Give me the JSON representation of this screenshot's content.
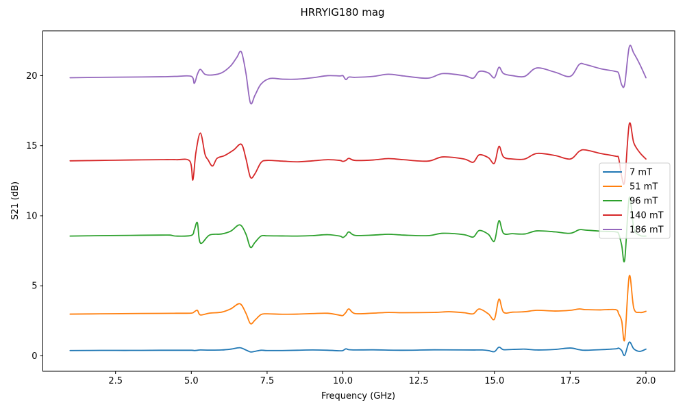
{
  "chart_data": {
    "type": "line",
    "title": "HRRYIG180 mag",
    "xlabel": "Frequency (GHz)",
    "ylabel": "S21 (dB)",
    "xlim": [
      0.1,
      20.95
    ],
    "ylim": [
      -1.1,
      23.2
    ],
    "xticks": [
      2.5,
      5.0,
      7.5,
      10.0,
      12.5,
      15.0,
      17.5,
      20.0
    ],
    "xtick_labels": [
      "2.5",
      "5.0",
      "7.5",
      "10.0",
      "12.5",
      "15.0",
      "17.5",
      "20.0"
    ],
    "yticks": [
      0,
      5,
      10,
      15,
      20
    ],
    "ytick_labels": [
      "0",
      "5",
      "10",
      "15",
      "20"
    ],
    "grid": false,
    "legend_position": "center-right",
    "series": [
      {
        "name": "7 mT",
        "color": "#1f77b4",
        "x": [
          1.0,
          2.0,
          3.0,
          4.0,
          4.5,
          5.0,
          5.1,
          5.2,
          5.3,
          5.6,
          6.0,
          6.3,
          6.6,
          6.8,
          6.95,
          7.1,
          7.3,
          7.5,
          8.0,
          8.5,
          9.0,
          9.5,
          9.9,
          10.0,
          10.1,
          10.2,
          10.4,
          11.0,
          12.0,
          13.0,
          14.0,
          14.4,
          14.6,
          14.8,
          15.0,
          15.15,
          15.3,
          15.6,
          16.0,
          16.4,
          17.0,
          17.5,
          17.8,
          18.0,
          18.5,
          19.0,
          19.1,
          19.2,
          19.3,
          19.45,
          19.6,
          19.8,
          20.0
        ],
        "y": [
          0.38,
          0.39,
          0.39,
          0.4,
          0.4,
          0.4,
          0.38,
          0.4,
          0.42,
          0.41,
          0.42,
          0.48,
          0.58,
          0.42,
          0.28,
          0.32,
          0.4,
          0.38,
          0.38,
          0.4,
          0.42,
          0.4,
          0.36,
          0.38,
          0.5,
          0.44,
          0.42,
          0.43,
          0.4,
          0.43,
          0.42,
          0.42,
          0.42,
          0.38,
          0.3,
          0.62,
          0.44,
          0.46,
          0.48,
          0.42,
          0.46,
          0.56,
          0.44,
          0.4,
          0.44,
          0.5,
          0.55,
          0.38,
          0.04,
          0.98,
          0.5,
          0.32,
          0.48
        ]
      },
      {
        "name": "51 mT",
        "color": "#ff7f0e",
        "x": [
          1.0,
          2.0,
          3.0,
          4.0,
          4.5,
          5.0,
          5.1,
          5.2,
          5.3,
          5.6,
          6.0,
          6.3,
          6.6,
          6.8,
          6.95,
          7.1,
          7.3,
          7.5,
          8.0,
          8.5,
          9.0,
          9.5,
          9.9,
          10.0,
          10.1,
          10.2,
          10.4,
          11.0,
          11.5,
          12.0,
          13.0,
          13.5,
          14.0,
          14.3,
          14.5,
          14.8,
          15.0,
          15.15,
          15.3,
          15.6,
          16.0,
          16.4,
          17.0,
          17.5,
          17.8,
          18.0,
          18.5,
          19.0,
          19.1,
          19.2,
          19.3,
          19.45,
          19.6,
          19.8,
          20.0
        ],
        "y": [
          2.98,
          3.0,
          3.02,
          3.03,
          3.04,
          3.05,
          3.15,
          3.25,
          2.92,
          3.05,
          3.12,
          3.35,
          3.72,
          3.05,
          2.3,
          2.55,
          2.95,
          3.0,
          2.97,
          2.98,
          3.02,
          3.04,
          2.9,
          2.88,
          3.1,
          3.35,
          3.02,
          3.05,
          3.1,
          3.08,
          3.1,
          3.15,
          3.08,
          3.0,
          3.35,
          3.0,
          2.62,
          4.05,
          3.12,
          3.12,
          3.15,
          3.25,
          3.2,
          3.25,
          3.35,
          3.3,
          3.28,
          3.3,
          3.0,
          2.5,
          1.18,
          5.7,
          3.4,
          3.1,
          3.18
        ]
      },
      {
        "name": "96 mT",
        "color": "#2ca02c",
        "x": [
          1.0,
          2.0,
          3.0,
          4.0,
          4.3,
          4.5,
          5.0,
          5.1,
          5.2,
          5.3,
          5.6,
          6.0,
          6.3,
          6.6,
          6.8,
          6.95,
          7.1,
          7.3,
          7.5,
          8.0,
          8.5,
          9.0,
          9.5,
          9.9,
          10.0,
          10.1,
          10.2,
          10.4,
          11.0,
          11.5,
          12.0,
          12.8,
          13.3,
          14.0,
          14.3,
          14.5,
          14.8,
          15.0,
          15.15,
          15.3,
          15.6,
          16.0,
          16.4,
          17.0,
          17.5,
          17.8,
          18.0,
          18.5,
          19.0,
          19.1,
          19.2,
          19.3,
          19.45,
          19.6,
          19.8,
          20.0
        ],
        "y": [
          8.55,
          8.58,
          8.6,
          8.62,
          8.62,
          8.55,
          8.6,
          9.0,
          9.5,
          8.05,
          8.62,
          8.7,
          8.9,
          9.35,
          8.7,
          7.75,
          8.1,
          8.55,
          8.57,
          8.56,
          8.55,
          8.58,
          8.65,
          8.55,
          8.45,
          8.6,
          8.85,
          8.6,
          8.62,
          8.68,
          8.62,
          8.58,
          8.75,
          8.65,
          8.48,
          8.95,
          8.68,
          8.2,
          9.65,
          8.75,
          8.72,
          8.7,
          8.92,
          8.85,
          8.75,
          9.0,
          8.98,
          8.9,
          8.85,
          8.7,
          7.9,
          6.85,
          11.3,
          9.1,
          8.6,
          8.55
        ]
      },
      {
        "name": "140 mT",
        "color": "#d62728",
        "x": [
          1.0,
          2.0,
          3.0,
          4.0,
          4.5,
          4.95,
          5.05,
          5.15,
          5.3,
          5.45,
          5.55,
          5.7,
          5.85,
          6.1,
          6.4,
          6.65,
          6.8,
          6.95,
          7.1,
          7.3,
          7.5,
          8.0,
          8.5,
          9.0,
          9.5,
          9.9,
          10.0,
          10.1,
          10.2,
          10.4,
          11.0,
          11.5,
          12.0,
          12.8,
          13.3,
          14.0,
          14.3,
          14.5,
          14.8,
          15.0,
          15.15,
          15.3,
          15.6,
          16.0,
          16.4,
          17.0,
          17.5,
          17.8,
          18.0,
          18.5,
          19.0,
          19.1,
          19.2,
          19.3,
          19.45,
          19.6,
          19.8,
          20.0
        ],
        "y": [
          13.92,
          13.95,
          13.98,
          14.0,
          14.0,
          13.9,
          12.55,
          14.5,
          15.9,
          14.4,
          14.0,
          13.55,
          14.1,
          14.3,
          14.7,
          15.1,
          14.1,
          12.75,
          13.0,
          13.8,
          13.95,
          13.9,
          13.85,
          13.92,
          14.0,
          13.95,
          13.88,
          13.95,
          14.1,
          13.95,
          13.98,
          14.08,
          14.0,
          13.9,
          14.2,
          14.05,
          13.82,
          14.35,
          14.15,
          13.75,
          14.95,
          14.2,
          14.05,
          14.05,
          14.45,
          14.3,
          14.05,
          14.6,
          14.7,
          14.45,
          14.25,
          14.1,
          12.8,
          12.5,
          16.55,
          15.2,
          14.5,
          14.05
        ]
      },
      {
        "name": "186 mT",
        "color": "#9467bd",
        "x": [
          1.0,
          2.0,
          3.0,
          4.0,
          4.5,
          5.0,
          5.1,
          5.2,
          5.3,
          5.45,
          5.7,
          6.0,
          6.3,
          6.5,
          6.65,
          6.8,
          6.95,
          7.1,
          7.3,
          7.6,
          8.0,
          8.5,
          9.0,
          9.5,
          9.9,
          10.0,
          10.1,
          10.2,
          10.4,
          11.0,
          11.5,
          12.0,
          12.8,
          13.3,
          14.0,
          14.3,
          14.5,
          14.8,
          15.0,
          15.15,
          15.3,
          15.6,
          16.0,
          16.4,
          17.0,
          17.5,
          17.8,
          18.0,
          18.5,
          19.0,
          19.1,
          19.2,
          19.3,
          19.45,
          19.6,
          19.8,
          20.0
        ],
        "y": [
          19.85,
          19.88,
          19.9,
          19.92,
          19.95,
          19.95,
          19.45,
          20.1,
          20.45,
          20.1,
          20.05,
          20.2,
          20.7,
          21.3,
          21.7,
          20.2,
          18.05,
          18.6,
          19.4,
          19.8,
          19.75,
          19.75,
          19.85,
          20.0,
          19.98,
          20.0,
          19.72,
          19.9,
          19.88,
          19.95,
          20.1,
          19.98,
          19.82,
          20.15,
          20.0,
          19.82,
          20.3,
          20.2,
          19.85,
          20.6,
          20.15,
          20.0,
          19.95,
          20.55,
          20.25,
          19.95,
          20.8,
          20.8,
          20.5,
          20.3,
          20.15,
          19.35,
          19.4,
          22.05,
          21.6,
          20.8,
          19.85
        ]
      }
    ]
  }
}
